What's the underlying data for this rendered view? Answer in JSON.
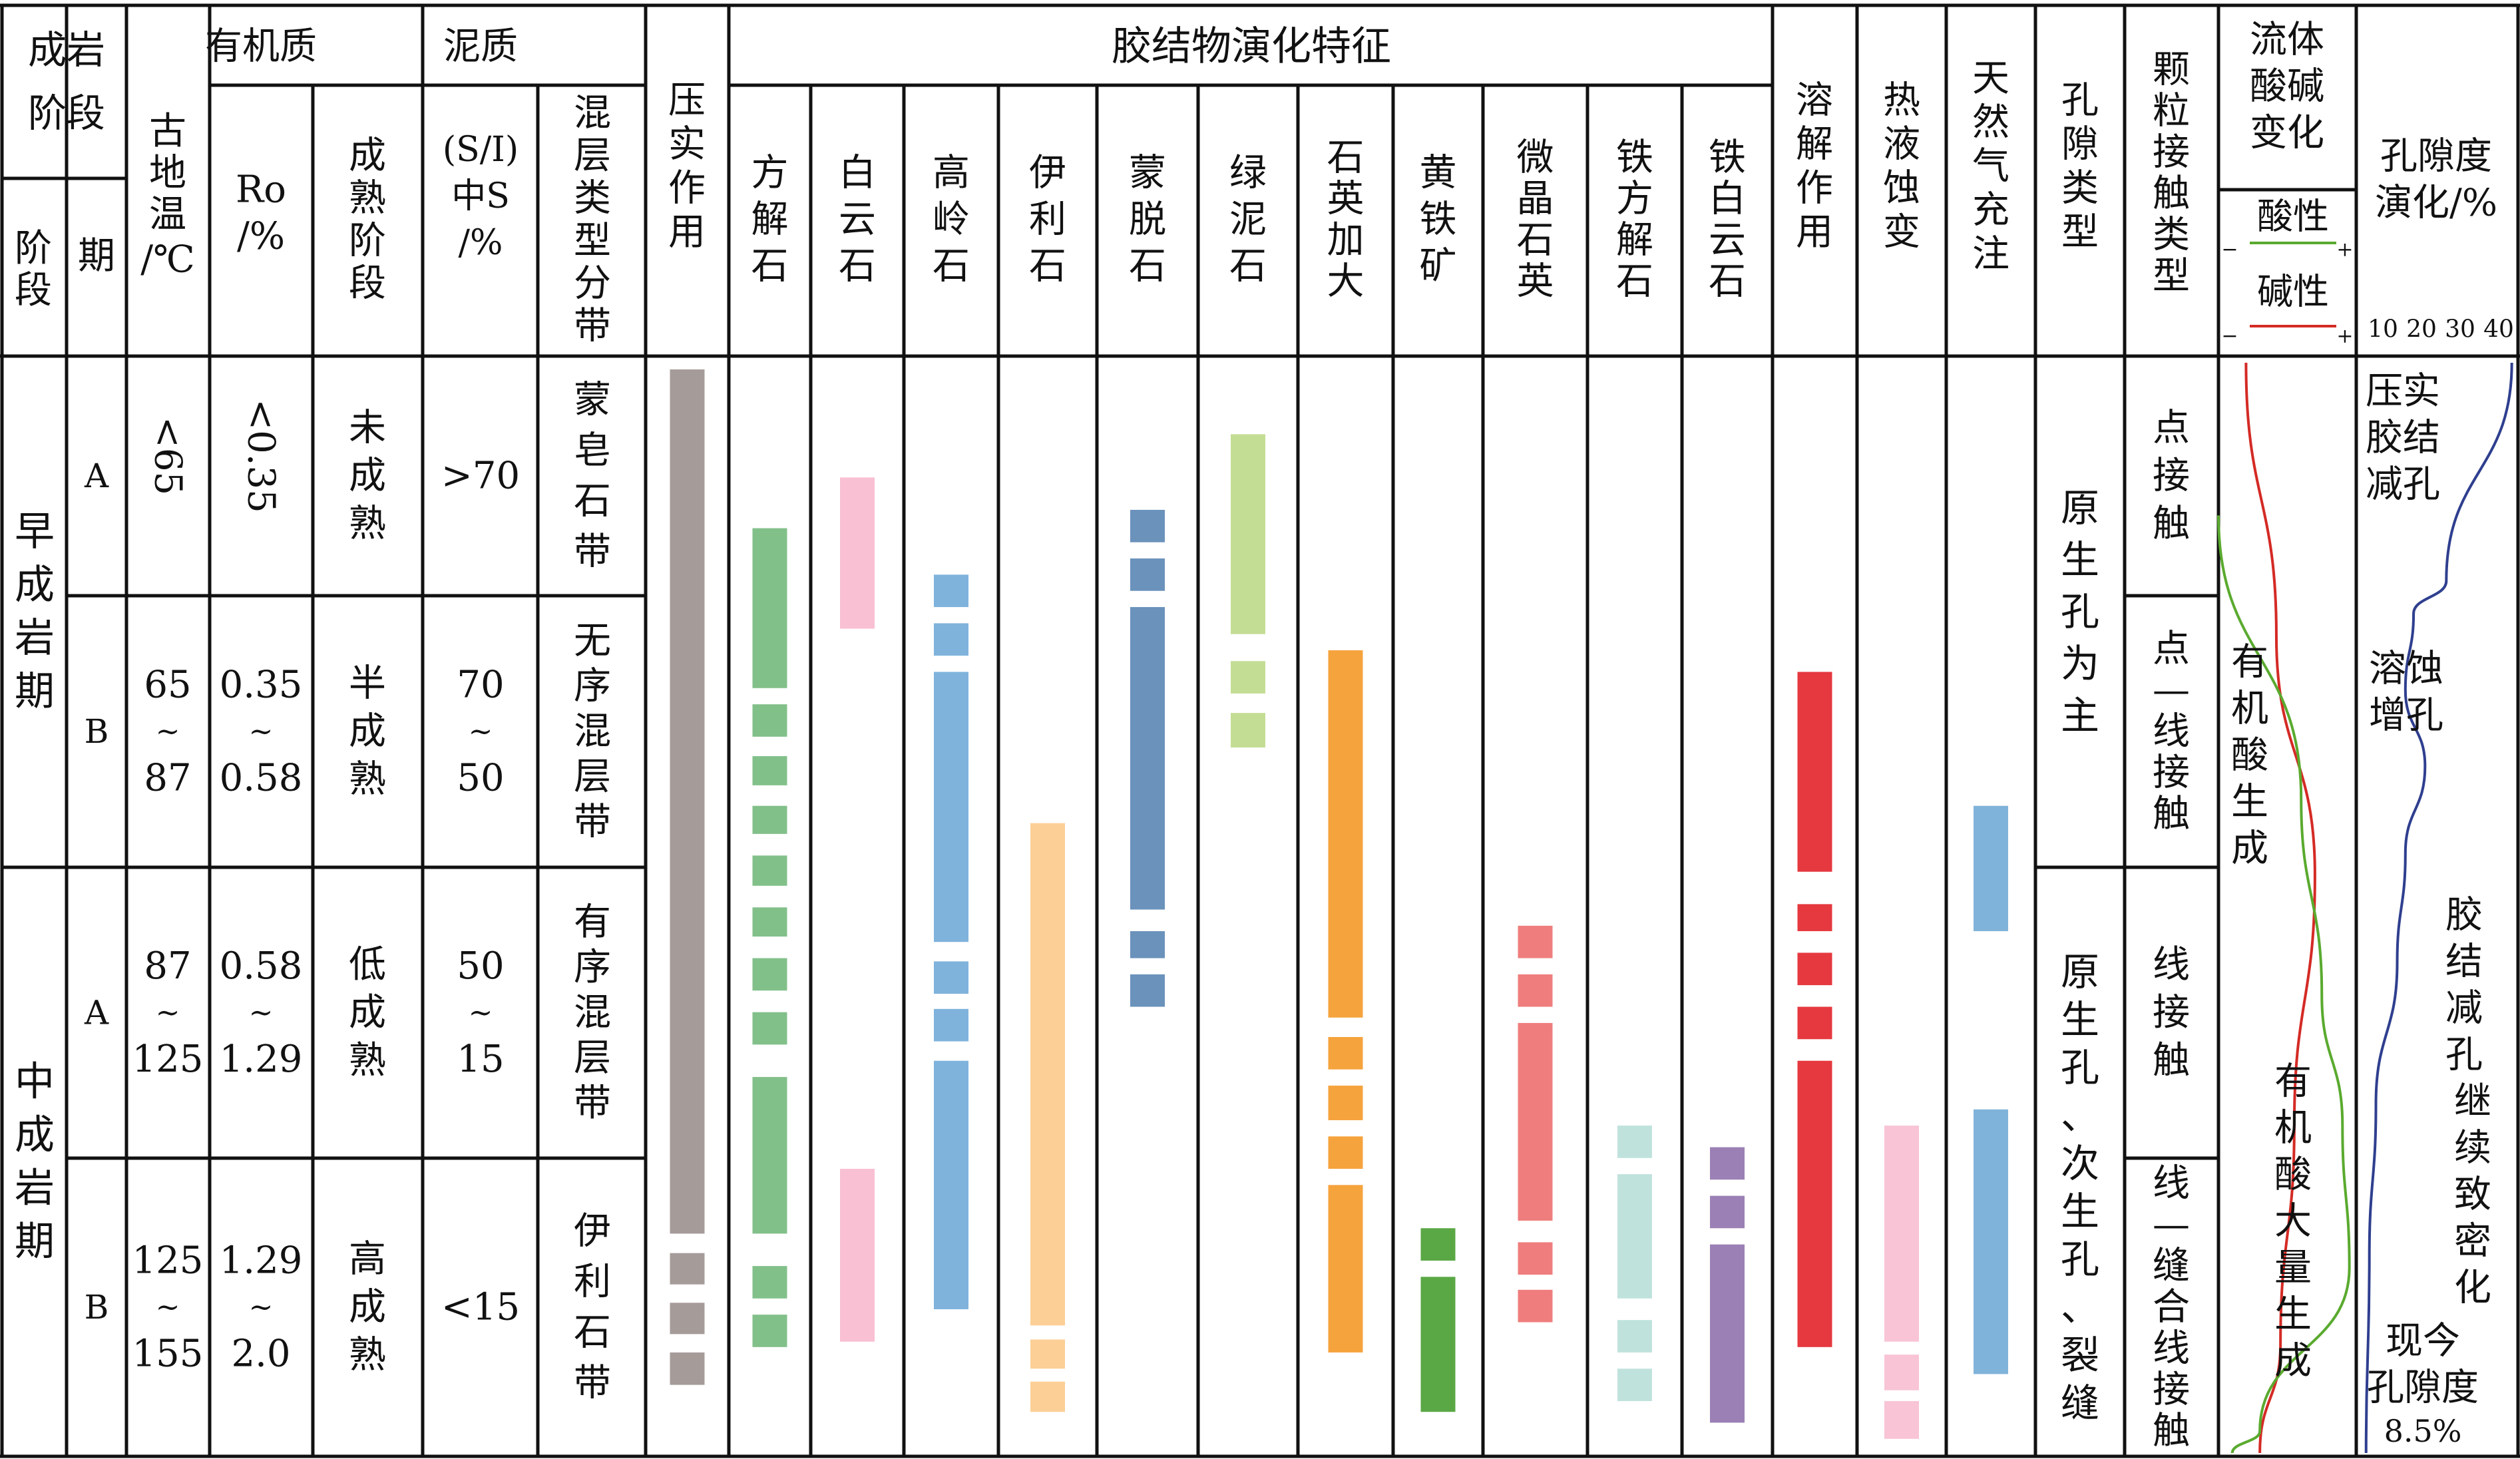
{
  "headers": {
    "stage_group": "成岩阶段",
    "stage": "阶段",
    "period": "期",
    "paleotemp": "古地温/℃",
    "organic": "有机质",
    "ro": "Ro/%",
    "maturity": "成熟阶段",
    "mud": "泥质",
    "si": "(S/I)中S/%",
    "mixlayer": "混层类型分带",
    "compaction": "压实作用",
    "cement": "胶结物演化特征",
    "dissolution": "溶解作用",
    "hydrothermal": "热液蚀变",
    "gas": "天然气充注",
    "pore_type": "孔隙类型",
    "contact": "颗粒接触类型",
    "fluid": "流体酸碱变化",
    "porosity": "孔隙度演化/%"
  },
  "cement_columns": [
    "方解石",
    "白云石",
    "高岭石",
    "伊利石",
    "蒙脱石",
    "绿泥石",
    "石英加大",
    "黄铁矿",
    "微晶石英",
    "铁方解石",
    "铁白云石"
  ],
  "fluid_legend": {
    "acid": "酸性",
    "base": "碱性",
    "minus": "−",
    "plus": "+",
    "acid_color": "#5aaa2f",
    "base_color": "#d42a25"
  },
  "porosity_ticks": [
    "10",
    "20",
    "30",
    "40"
  ],
  "stages": [
    {
      "name": "早成岩期",
      "periods": [
        {
          "period": "A",
          "temp": "<65",
          "ro": "<0.35",
          "maturity": "未成熟",
          "si": ">70",
          "mixlayer": "蒙皂石带"
        },
        {
          "period": "B",
          "temp": "65~87",
          "ro": "0.35~0.58",
          "maturity": "半成熟",
          "si": "70~50",
          "mixlayer": "无序混层带"
        }
      ]
    },
    {
      "name": "中成岩期",
      "periods": [
        {
          "period": "A",
          "temp": "87~125",
          "ro": "0.58~1.29",
          "maturity": "低成熟",
          "si": "50~15",
          "mixlayer": "有序混层带"
        },
        {
          "period": "B",
          "temp": "125~155",
          "ro": "1.29~2.0",
          "maturity": "高成熟",
          "si": "<15",
          "mixlayer": "伊利石带"
        }
      ]
    }
  ],
  "pore_types": [
    "原生孔为主",
    "原生孔、次生孔、裂缝"
  ],
  "contact_types": [
    "点接触",
    "点—线接触",
    "线接触",
    "线—缝合线接触"
  ],
  "fluid_notes": [
    "有机酸生成",
    "有机酸大量生成"
  ],
  "porosity_notes": [
    "压实胶结减孔",
    "溶蚀增孔",
    "胶结减孔",
    "继续致密化",
    "现今孔隙度8.5%"
  ],
  "bar_colors": {
    "compaction": "#a59c9a",
    "calcite": "#82c08a",
    "dolomite": "#f8c0d2",
    "kaolinite": "#7fb3dc",
    "illite": "#fccf96",
    "montmorillonite": "#6a92bb",
    "chlorite": "#c4dd94",
    "quartz": "#f5a33d",
    "pyrite": "#5aa845",
    "microquartz": "#ef7d7d",
    "ferrocalcite": "#bfe2dc",
    "ankerite": "#9b80b5",
    "dissolution": "#e5383f",
    "hydrothermal": "#f8c4d6",
    "gas": "#80b3d9"
  },
  "bars": [
    {
      "color": "compaction",
      "segments": [
        [
          0,
          0.8
        ],
        [
          0.818,
          0.847
        ],
        [
          0.864,
          0.893
        ],
        [
          0.91,
          0.94
        ]
      ]
    },
    {
      "color": "calcite",
      "segments": [
        [
          0.147,
          0.295
        ],
        [
          0.31,
          0.34
        ],
        [
          0.358,
          0.385
        ],
        [
          0.404,
          0.43
        ],
        [
          0.45,
          0.478
        ],
        [
          0.498,
          0.525
        ],
        [
          0.545,
          0.575
        ],
        [
          0.595,
          0.625
        ],
        [
          0.655,
          0.8
        ],
        [
          0.83,
          0.86
        ],
        [
          0.875,
          0.905
        ]
      ]
    },
    {
      "color": "dolomite",
      "segments": [
        [
          0.1,
          0.24
        ],
        [
          0.74,
          0.9
        ]
      ]
    },
    {
      "color": "kaolinite",
      "segments": [
        [
          0.19,
          0.22
        ],
        [
          0.235,
          0.265
        ],
        [
          0.28,
          0.53
        ],
        [
          0.548,
          0.578
        ],
        [
          0.592,
          0.622
        ],
        [
          0.64,
          0.87
        ]
      ]
    },
    {
      "color": "illite",
      "segments": [
        [
          0.42,
          0.885
        ],
        [
          0.898,
          0.925
        ],
        [
          0.937,
          0.965
        ]
      ]
    },
    {
      "color": "montmorillonite",
      "segments": [
        [
          0.13,
          0.16
        ],
        [
          0.175,
          0.205
        ],
        [
          0.22,
          0.5
        ],
        [
          0.52,
          0.545
        ],
        [
          0.56,
          0.59
        ]
      ]
    },
    {
      "color": "chlorite",
      "segments": [
        [
          0.06,
          0.245
        ],
        [
          0.27,
          0.3
        ],
        [
          0.318,
          0.35
        ]
      ]
    },
    {
      "color": "quartz",
      "segments": [
        [
          0.26,
          0.6
        ],
        [
          0.618,
          0.648
        ],
        [
          0.663,
          0.695
        ],
        [
          0.71,
          0.74
        ],
        [
          0.755,
          0.91
        ]
      ]
    },
    {
      "color": "pyrite",
      "segments": [
        [
          0.795,
          0.825
        ],
        [
          0.84,
          0.965
        ]
      ]
    },
    {
      "color": "microquartz",
      "segments": [
        [
          0.515,
          0.545
        ],
        [
          0.56,
          0.59
        ],
        [
          0.605,
          0.788
        ],
        [
          0.808,
          0.838
        ],
        [
          0.852,
          0.882
        ]
      ]
    },
    {
      "color": "ferrocalcite",
      "segments": [
        [
          0.7,
          0.73
        ],
        [
          0.745,
          0.86
        ],
        [
          0.88,
          0.91
        ],
        [
          0.925,
          0.955
        ]
      ]
    },
    {
      "color": "ankerite",
      "segments": [
        [
          0.72,
          0.75
        ],
        [
          0.765,
          0.795
        ],
        [
          0.81,
          0.975
        ]
      ]
    },
    {
      "color": "dissolution",
      "segments": [
        [
          0.28,
          0.465
        ],
        [
          0.495,
          0.52
        ],
        [
          0.54,
          0.57
        ],
        [
          0.59,
          0.62
        ],
        [
          0.64,
          0.905
        ]
      ]
    },
    {
      "color": "hydrothermal",
      "segments": [
        [
          0.7,
          0.9
        ],
        [
          0.912,
          0.945
        ],
        [
          0.955,
          0.99
        ]
      ]
    },
    {
      "color": "gas",
      "segments": [
        [
          0.404,
          0.52
        ],
        [
          0.685,
          0.93
        ]
      ]
    }
  ],
  "curves": {
    "base_color": "#d42a25",
    "acid_color": "#5aaa2f",
    "porosity_color": "#2f3f8f",
    "base": [
      [
        0.2,
        0
      ],
      [
        0.42,
        0.25
      ],
      [
        0.7,
        0.47
      ],
      [
        0.55,
        0.7
      ],
      [
        0.45,
        0.9
      ],
      [
        0.3,
        1
      ]
    ],
    "acid": [
      [
        0,
        0.14
      ],
      [
        0.6,
        0.4
      ],
      [
        0.75,
        0.58
      ],
      [
        0.9,
        0.7
      ],
      [
        0.95,
        0.83
      ],
      [
        0.3,
        0.98
      ],
      [
        0.1,
        1
      ]
    ],
    "porosity": [
      [
        0.95,
        0
      ],
      [
        0.55,
        0.2
      ],
      [
        0.35,
        0.23
      ],
      [
        0.3,
        0.3
      ],
      [
        0.42,
        0.37
      ],
      [
        0.3,
        0.45
      ],
      [
        0.25,
        0.55
      ],
      [
        0.12,
        0.68
      ],
      [
        0.08,
        0.82
      ],
      [
        0.06,
        1
      ]
    ]
  }
}
